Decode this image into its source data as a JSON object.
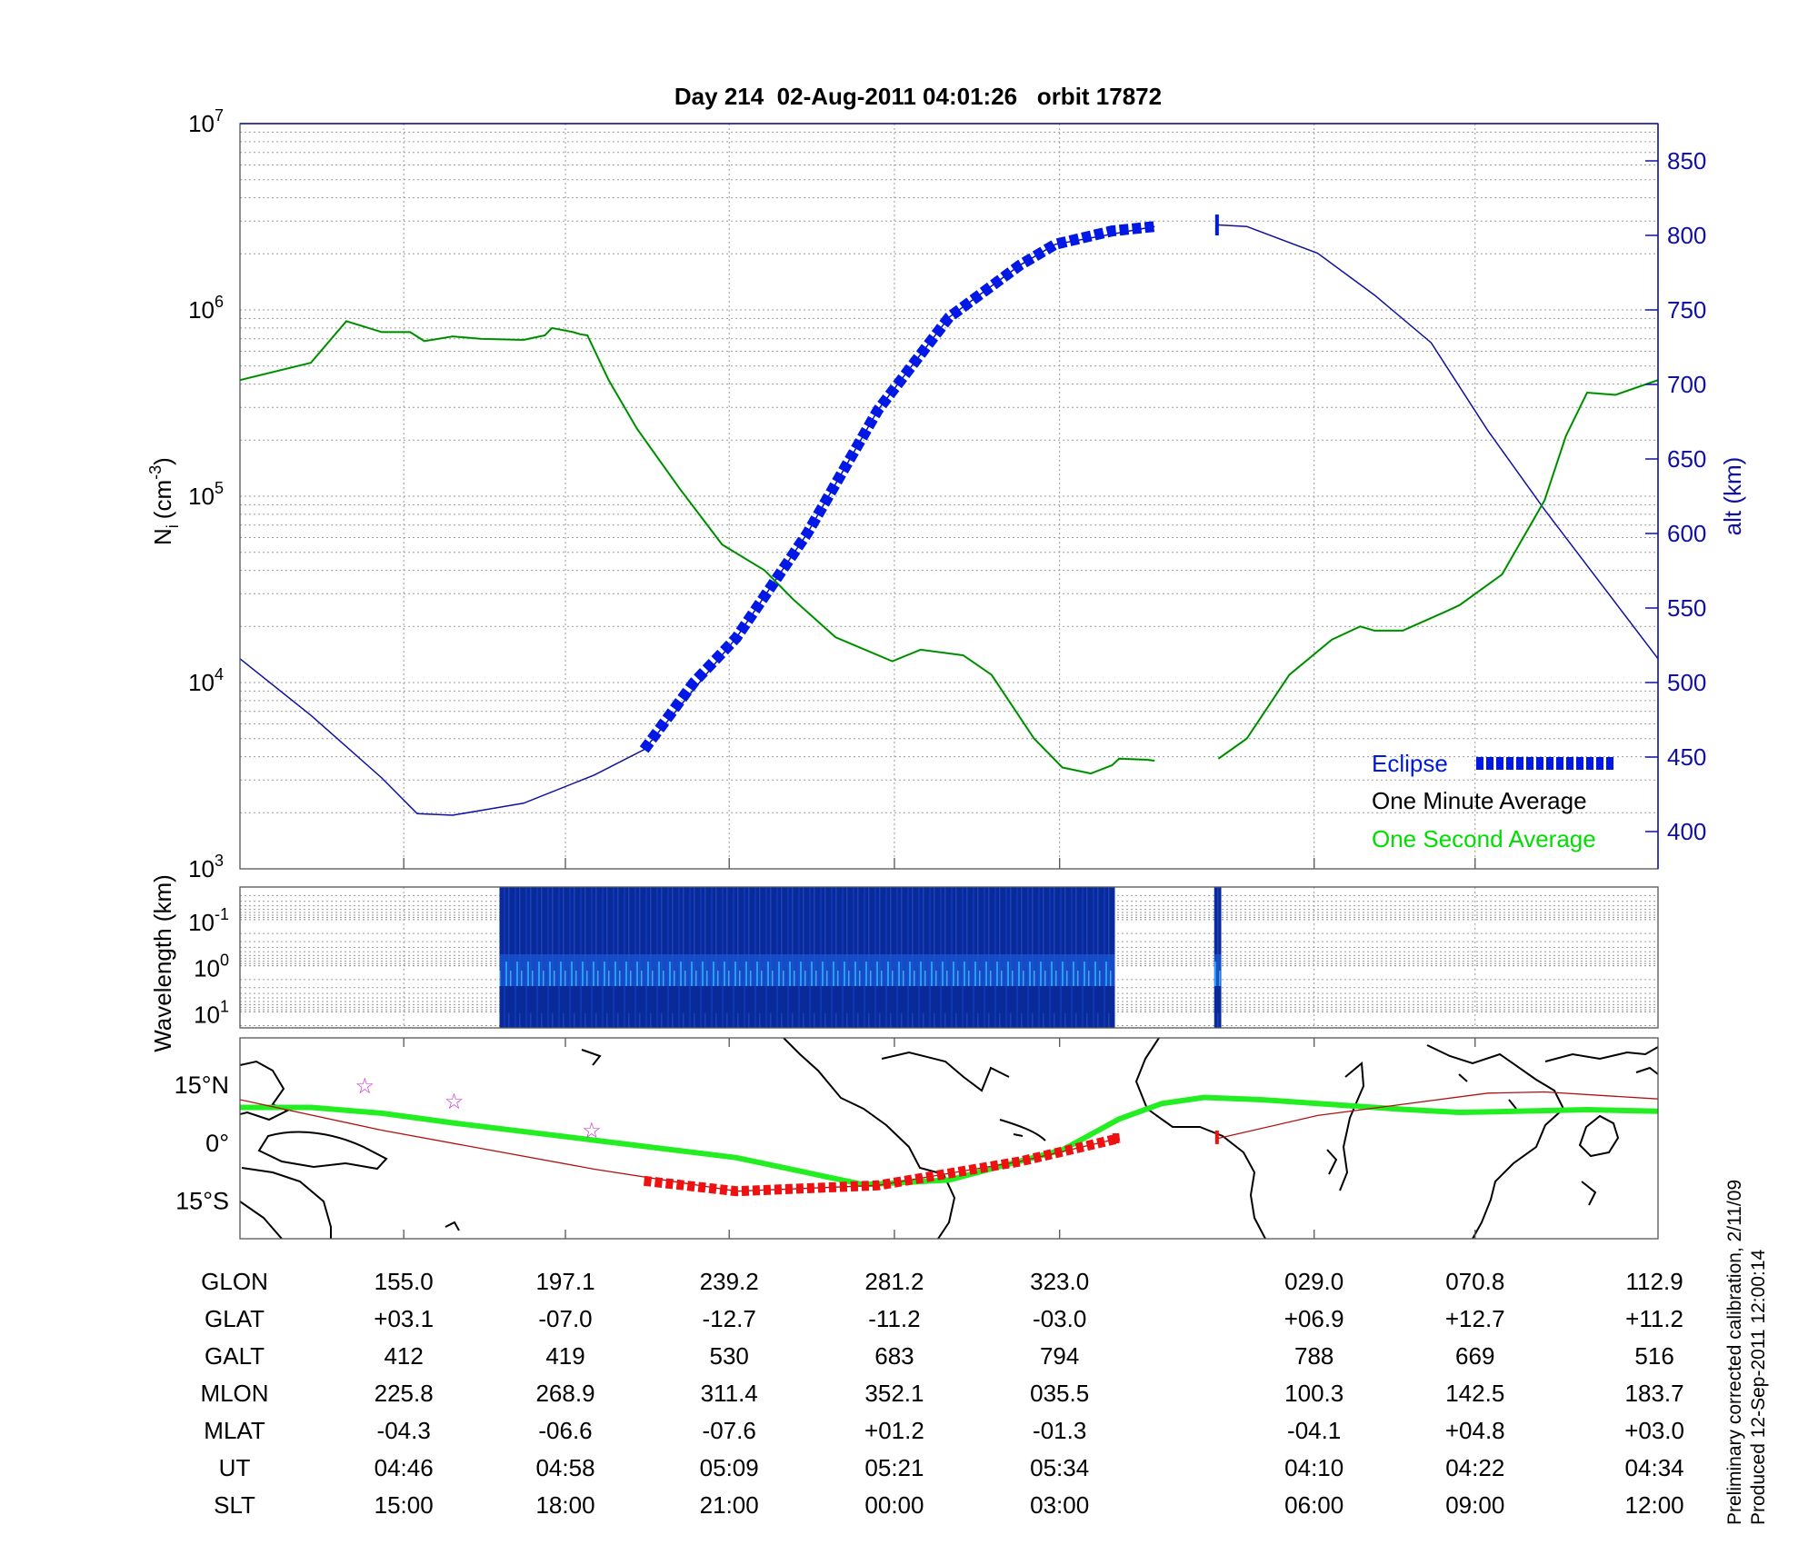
{
  "title": "Day 214  02-Aug-2011 04:01:26   orbit 17872",
  "colors": {
    "eclipse": "#0018e6",
    "altitude": "#1010a0",
    "one_minute": "#1a6a1a",
    "one_second": "#00dd00",
    "track": "#b01010",
    "map_eclipse": "#ee1111",
    "map_mag_eq": "#22ee22",
    "stars": "#cc33cc",
    "spectrum": "#0a2a9a"
  },
  "chart_data": [
    {
      "type": "line",
      "panel": "density",
      "ylabel": "N_i (cm^-3)",
      "ylabel_main": "N",
      "ylabel_sub": "i",
      "ylabel_unit": "(cm",
      "ylabel_exp": "-3",
      "ylabel_close": ")",
      "yscale": "log",
      "ylim": [
        1000,
        10000000
      ],
      "yticks": [
        {
          "base": "10",
          "exp": "3"
        },
        {
          "base": "10",
          "exp": "4"
        },
        {
          "base": "10",
          "exp": "5"
        },
        {
          "base": "10",
          "exp": "6"
        },
        {
          "base": "10",
          "exp": "7"
        }
      ],
      "y2label": "alt (km)",
      "y2lim": [
        375,
        875
      ],
      "y2ticks": [
        "400",
        "450",
        "500",
        "550",
        "600",
        "650",
        "700",
        "750",
        "800",
        "850"
      ],
      "grid": true,
      "legend_position": "bottom-right",
      "legend": {
        "eclipse": "Eclipse",
        "one_minute": "One Minute Average",
        "one_second": "One Second Average"
      },
      "series": [
        {
          "name": "One Minute Average",
          "values": [
            [
              0,
              420000
            ],
            [
              0.05,
              520000
            ],
            [
              0.075,
              870000
            ],
            [
              0.1,
              760000
            ],
            [
              0.12,
              760000
            ],
            [
              0.13,
              680000
            ],
            [
              0.15,
              720000
            ],
            [
              0.17,
              700000
            ],
            [
              0.2,
              690000
            ],
            [
              0.215,
              730000
            ],
            [
              0.22,
              800000
            ],
            [
              0.235,
              760000
            ],
            [
              0.24,
              740000
            ],
            [
              0.245,
              730000
            ],
            [
              0.26,
              420000
            ],
            [
              0.28,
              230000
            ],
            [
              0.31,
              110000
            ],
            [
              0.34,
              55000
            ],
            [
              0.37,
              40000
            ],
            [
              0.39,
              28000
            ],
            [
              0.42,
              17500
            ],
            [
              0.46,
              13000
            ],
            [
              0.48,
              15000
            ],
            [
              0.51,
              14000
            ],
            [
              0.53,
              11000
            ],
            [
              0.56,
              5000
            ],
            [
              0.58,
              3500
            ],
            [
              0.6,
              3250
            ],
            [
              0.615,
              3600
            ],
            [
              0.62,
              3900
            ],
            [
              0.64,
              3850
            ],
            [
              0.645,
              3800
            ],
            null,
            [
              0.69,
              3900
            ],
            [
              0.71,
              5000
            ],
            [
              0.74,
              11000
            ],
            [
              0.77,
              17000
            ],
            [
              0.79,
              20000
            ],
            [
              0.8,
              19000
            ],
            [
              0.82,
              19000
            ],
            [
              0.85,
              24000
            ],
            [
              0.86,
              26000
            ],
            [
              0.89,
              38000
            ],
            [
              0.92,
              95000
            ],
            [
              0.935,
              210000
            ],
            [
              0.95,
              360000
            ],
            [
              0.97,
              350000
            ],
            [
              1,
              420000
            ]
          ]
        },
        {
          "name": "alt (km)",
          "axis": "right",
          "values": [
            [
              0,
              516
            ],
            [
              0.05,
              478
            ],
            [
              0.1,
              436
            ],
            [
              0.125,
              412
            ],
            [
              0.15,
              411
            ],
            [
              0.2,
              419
            ],
            [
              0.25,
              438
            ],
            [
              0.285,
              455
            ],
            [
              0.35,
              530
            ],
            [
              0.4,
              600
            ],
            [
              0.45,
              683
            ],
            [
              0.5,
              745
            ],
            [
              0.55,
              780
            ],
            [
              0.575,
              794
            ],
            [
              0.645,
              806
            ],
            null,
            [
              0.69,
              807
            ],
            [
              0.71,
              806
            ],
            [
              0.76,
              788
            ],
            [
              0.8,
              760
            ],
            [
              0.84,
              728
            ],
            [
              0.88,
              669
            ],
            [
              0.92,
              616
            ],
            [
              0.96,
              566
            ],
            [
              1,
              516
            ]
          ]
        },
        {
          "name": "Eclipse",
          "axis": "right",
          "values": [
            [
              0.285,
              455
            ],
            [
              0.32,
              500
            ],
            [
              0.35,
              530
            ],
            [
              0.4,
              600
            ],
            [
              0.45,
              683
            ],
            [
              0.5,
              745
            ],
            [
              0.55,
              780
            ],
            [
              0.575,
              794
            ],
            [
              0.615,
              803
            ],
            [
              0.645,
              806
            ]
          ]
        }
      ]
    },
    {
      "type": "heatmap",
      "panel": "spectrum",
      "ylabel": "Wavelength (km)",
      "yticks": [
        {
          "base": "10",
          "exp": "-1"
        },
        {
          "base": "10",
          "exp": "0"
        },
        {
          "base": "10",
          "exp": "1"
        }
      ],
      "data_ranges": [
        [
          0.183,
          0.617
        ],
        [
          0.687,
          0.692
        ]
      ]
    },
    {
      "type": "line",
      "panel": "map",
      "yticks": [
        "15°N",
        "0°",
        "15°S"
      ],
      "ylim": [
        -25,
        27
      ],
      "series": [
        {
          "name": "ground-track",
          "values": [
            [
              0,
              11
            ],
            [
              0.1,
              3.1
            ],
            [
              0.25,
              -7
            ],
            [
              0.35,
              -12.7
            ],
            [
              0.45,
              -11.2
            ],
            [
              0.55,
              -5
            ],
            [
              0.62,
              1
            ],
            null,
            [
              0.69,
              1
            ],
            [
              0.76,
              6.9
            ],
            [
              0.88,
              12.7
            ],
            [
              0.92,
              13
            ],
            [
              1,
              11.2
            ]
          ]
        },
        {
          "name": "magnetic-equator",
          "values": [
            [
              0,
              9
            ],
            [
              0.05,
              9
            ],
            [
              0.1,
              7.5
            ],
            [
              0.15,
              5
            ],
            [
              0.25,
              0.5
            ],
            [
              0.35,
              -4
            ],
            [
              0.44,
              -11
            ],
            [
              0.5,
              -9.8
            ],
            [
              0.58,
              -2
            ],
            [
              0.62,
              6
            ],
            [
              0.65,
              10
            ],
            [
              0.68,
              11.6
            ],
            [
              0.72,
              11
            ],
            [
              0.8,
              9
            ],
            [
              0.82,
              8.5
            ],
            [
              0.86,
              7.7
            ],
            [
              0.9,
              8
            ],
            [
              0.95,
              8.4
            ],
            [
              1,
              8
            ]
          ]
        }
      ],
      "stars": [
        [
          0.088,
          14.5
        ],
        [
          0.151,
          10.5
        ],
        [
          0.248,
          3
        ]
      ]
    }
  ],
  "table": {
    "rows": [
      {
        "label": "GLON",
        "values": [
          "155.0",
          "197.1",
          "239.2",
          "281.2",
          "323.0",
          "029.0",
          "070.8",
          "112.9"
        ]
      },
      {
        "label": "GLAT",
        "values": [
          "+03.1",
          "-07.0",
          "-12.7",
          "-11.2",
          "-03.0",
          "+06.9",
          "+12.7",
          "+11.2"
        ]
      },
      {
        "label": "GALT",
        "values": [
          "412",
          "419",
          "530",
          "683",
          "794",
          "788",
          "669",
          "516"
        ]
      },
      {
        "label": "MLON",
        "values": [
          "225.8",
          "268.9",
          "311.4",
          "352.1",
          "035.5",
          "100.3",
          "142.5",
          "183.7"
        ]
      },
      {
        "label": "MLAT",
        "values": [
          "-04.3",
          "-06.6",
          "-07.6",
          "+01.2",
          "-01.3",
          "-04.1",
          "+04.8",
          "+03.0"
        ]
      },
      {
        "label": "UT",
        "values": [
          "04:46",
          "04:58",
          "05:09",
          "05:21",
          "05:34",
          "04:10",
          "04:22",
          "04:34"
        ]
      },
      {
        "label": "SLT",
        "values": [
          "15:00",
          "18:00",
          "21:00",
          "00:00",
          "03:00",
          "06:00",
          "09:00",
          "12:00"
        ]
      }
    ]
  },
  "notes": {
    "calibration": "Preliminary corrected calibration, 2/11/09",
    "produced": "Produced 12-Sep-2011 12:00:14"
  }
}
